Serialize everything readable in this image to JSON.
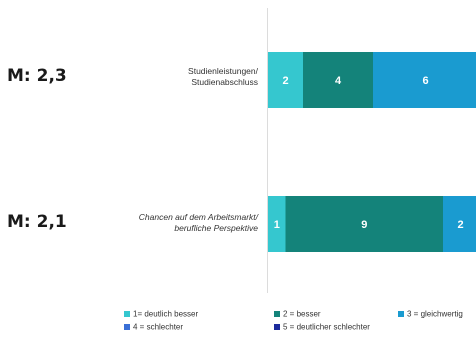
{
  "chart_data": {
    "type": "bar",
    "orientation": "horizontal",
    "stacked": true,
    "categories": [
      {
        "mean_label": "M: 2,3",
        "label_lines": [
          "Studienleistungen/",
          "Studienabschluss"
        ],
        "values": [
          2,
          4,
          6
        ],
        "colors": [
          "#35c7cf",
          "#14837a",
          "#1a9bd0"
        ]
      },
      {
        "mean_label": "M: 2,1",
        "label_lines": [
          "Chancen auf dem Arbeitsmarkt/",
          "berufliche Perspektive"
        ],
        "values": [
          1,
          9,
          2
        ],
        "colors": [
          "#35c7cf",
          "#14837a",
          "#1a9bd0"
        ]
      }
    ],
    "legend": [
      {
        "label": "1= deutlich besser",
        "color": "#35c7cf"
      },
      {
        "label": "2 = besser",
        "color": "#14837a"
      },
      {
        "label": "3 = gleichwertig",
        "color": "#1a9bd0"
      },
      {
        "label": "4 = schlechter",
        "color": "#3a6fd6"
      },
      {
        "label": "5 = deutlicher schlechter",
        "color": "#1c2a9c"
      }
    ],
    "legend_position": "bottom",
    "grid": false
  }
}
